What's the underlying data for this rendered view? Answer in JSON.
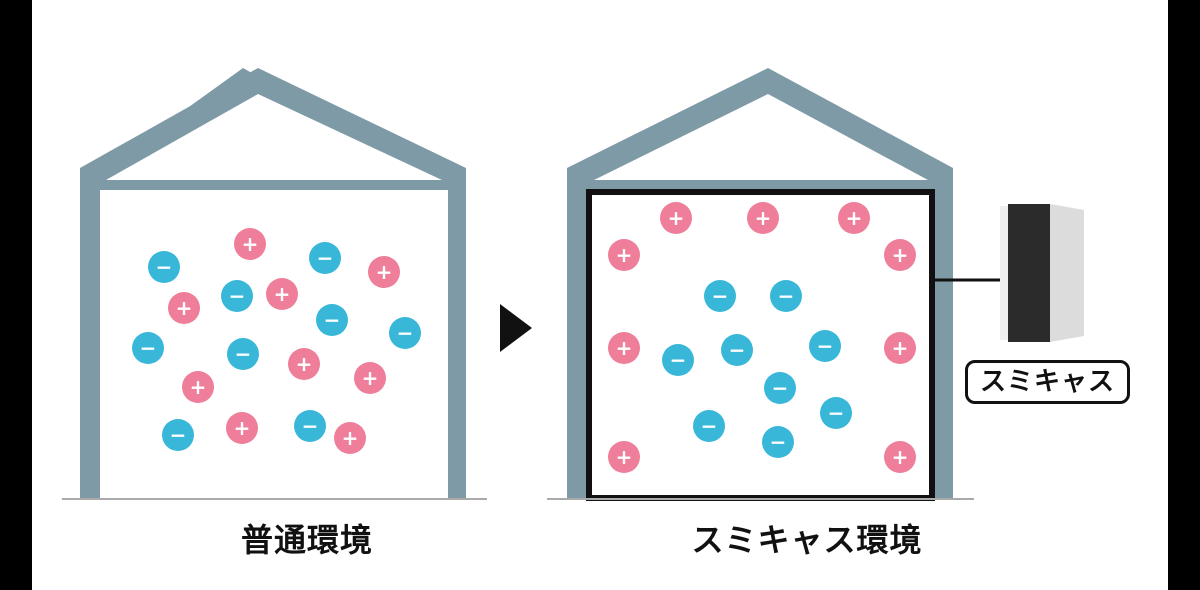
{
  "labels": {
    "normal_environment": "普通環境",
    "sumicas_environment": "スミキャス環境",
    "device_name": "スミキャス"
  },
  "ion_symbols": {
    "positive": "+",
    "negative": "−"
  },
  "colors": {
    "house_frame": "#7e9aa6",
    "positive_ion": "#ee7e99",
    "negative_ion": "#39b7d8",
    "sumicas_inner_frame": "#111111",
    "device_body": "#2b2b2b",
    "device_side": "#dcdcdc",
    "arrow": "#111111"
  }
}
